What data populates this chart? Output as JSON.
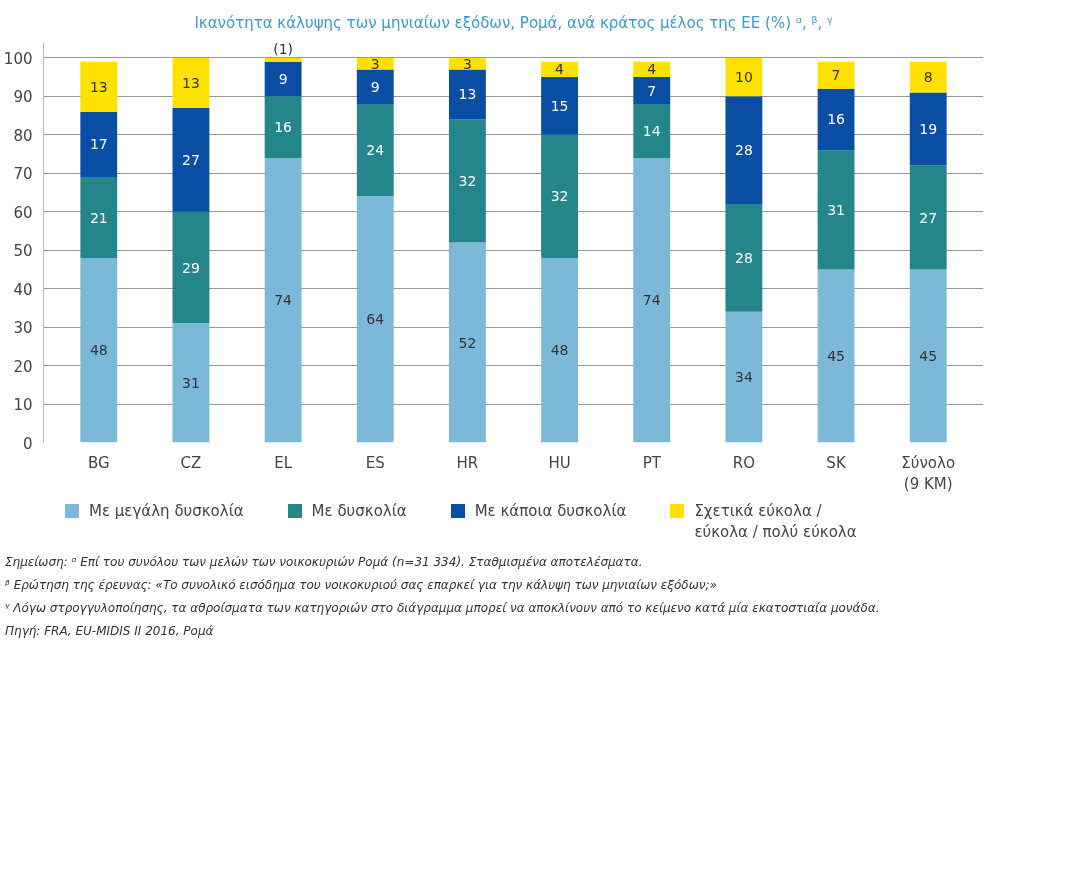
{
  "chart_data": {
    "type": "bar",
    "stacked": true,
    "title": "Ικανότητα κάλυψης των μηνιαίων εξόδων, Ρομά, ανά κράτος μέλος της ΕΕ (%) ᵅ, ᵝ, ᵞ",
    "categories": [
      "BG",
      "CZ",
      "EL",
      "ES",
      "HR",
      "HU",
      "PT",
      "RO",
      "SK",
      "Σύνολο\n(9 ΚΜ)"
    ],
    "series": [
      {
        "name": "Με μεγάλη δυσκολία",
        "color": "#7cb9d9",
        "values": [
          48,
          31,
          74,
          64,
          52,
          48,
          74,
          34,
          45,
          45
        ],
        "value_labels": [
          "48",
          "31",
          "74",
          "64",
          "52",
          "48",
          "74",
          "34",
          "45",
          "45"
        ]
      },
      {
        "name": "Με δυσκολία",
        "color": "#24868a",
        "values": [
          21,
          29,
          16,
          24,
          32,
          32,
          14,
          28,
          31,
          27
        ],
        "value_labels": [
          "21",
          "29",
          "16",
          "24",
          "32",
          "32",
          "14",
          "28",
          "31",
          "27"
        ]
      },
      {
        "name": "Με κάποια δυσκολία",
        "color": "#0a4ea3",
        "values": [
          17,
          27,
          9,
          9,
          13,
          15,
          7,
          28,
          16,
          19
        ],
        "value_labels": [
          "17",
          "27",
          "9",
          "9",
          "13",
          "15",
          "7",
          "28",
          "16",
          "19"
        ]
      },
      {
        "name": "Σχετικά εύκολα /\nεύκολα / πολύ εύκολα",
        "color": "#ffe100",
        "values": [
          13,
          13,
          1,
          3,
          3,
          4,
          4,
          10,
          7,
          8
        ],
        "value_labels": [
          "13",
          "13",
          "(1)",
          "3",
          "3",
          "4",
          "4",
          "10",
          "7",
          "8"
        ]
      }
    ],
    "ylim": [
      0,
      104
    ],
    "yticks": [
      0,
      10,
      20,
      30,
      40,
      50,
      60,
      70,
      80,
      90,
      100
    ],
    "grid": "y",
    "legend": "bottom",
    "annotations": [
      "Σημείωση: ᵅ Επί του συνόλου των μελών των νοικοκυριών Ρομά (n=31 334). Σταθμισμένα αποτελέσματα.",
      "ᵝ Ερώτηση της έρευνας: «Το συνολικό εισόδημα του νοικοκυριού σας επαρκεί για την κάλυψη των μηνιαίων εξόδων;»",
      "ᵞ Λόγω στρογγυλοποίησης, τα αθροίσματα των κατηγοριών στο διάγραμμα μπορεί να αποκλίνουν από το κείμενο κατά μία εκατοστιαία μονάδα.",
      "Πηγή: FRA, EU-MIDIS II 2016, Ρομά"
    ]
  }
}
